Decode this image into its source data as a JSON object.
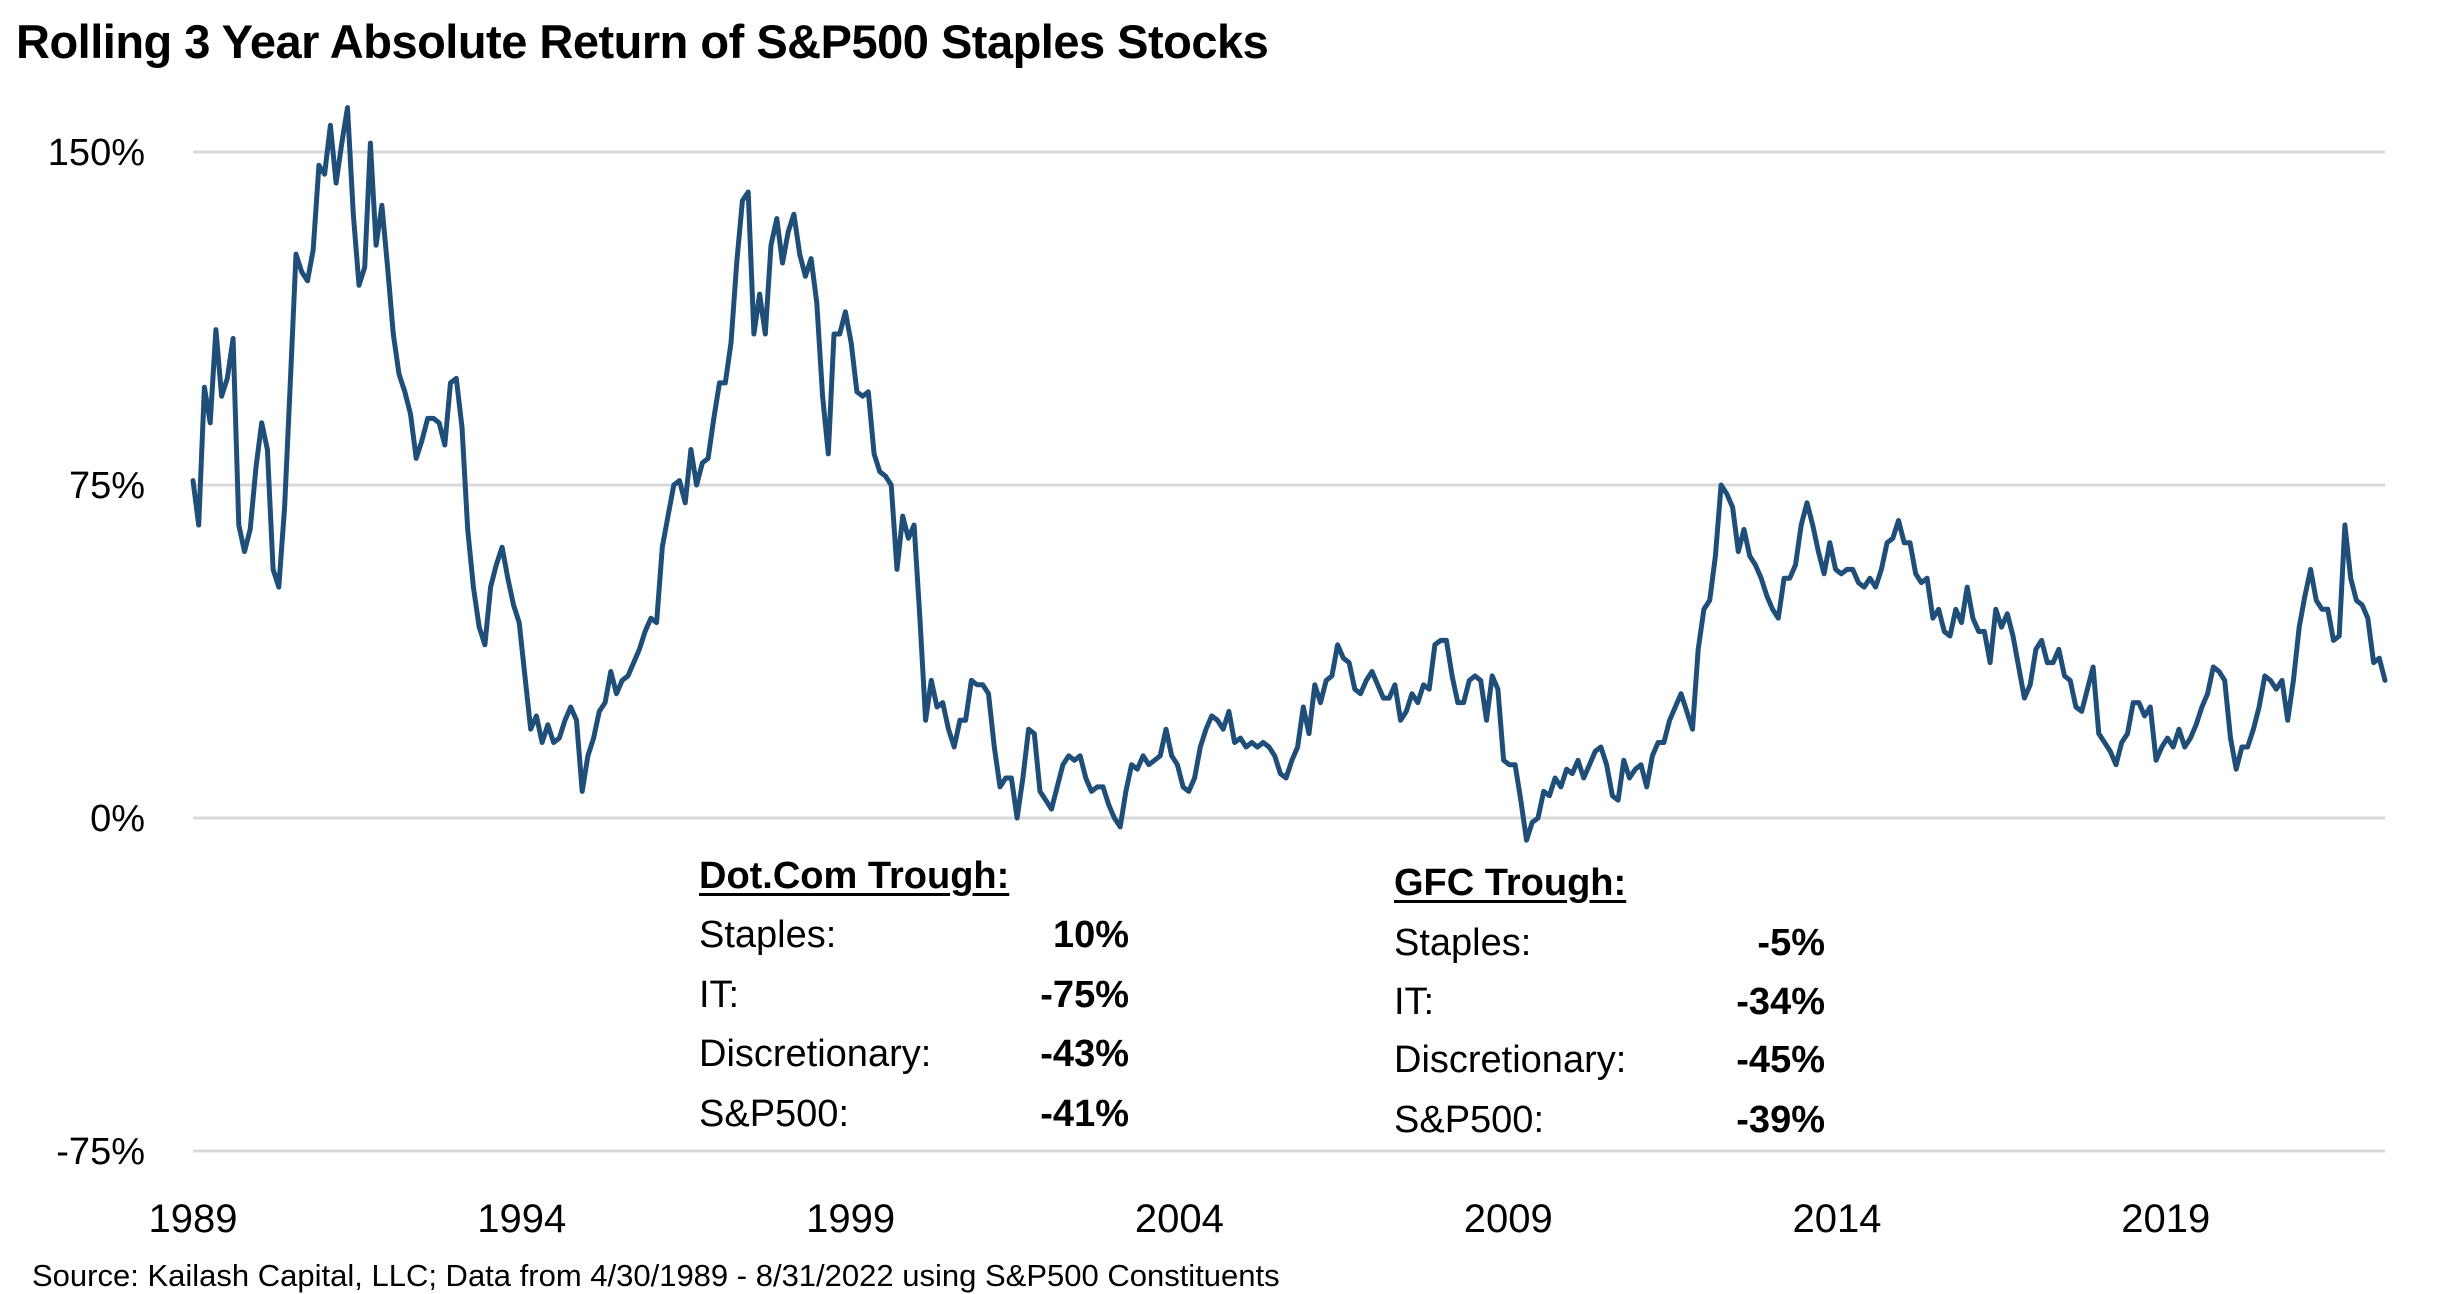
{
  "chart_data": {
    "type": "line",
    "title": "Rolling 3 Year Absolute Return of S&P500 Staples Stocks",
    "xlabel": "",
    "ylabel": "",
    "x_start": "1989-04",
    "x_end": "2022-08",
    "frequency": "monthly",
    "x_ticks": [
      "1989",
      "1994",
      "1999",
      "2004",
      "2009",
      "2014",
      "2019"
    ],
    "y_ticks": [
      150,
      75,
      0,
      -75
    ],
    "y_tick_labels": [
      "150%",
      "75%",
      "0%",
      "-75%"
    ],
    "ylim": [
      -75,
      160
    ],
    "grid": "horizontal",
    "line_color": "#1f4e79",
    "grid_color": "#d9d9d9",
    "values": [
      76,
      66,
      97,
      89,
      110,
      95,
      99,
      108,
      66,
      60,
      65,
      79,
      89,
      83,
      56,
      52,
      70,
      98,
      127,
      123,
      121,
      128,
      147,
      145,
      156,
      143,
      152,
      160,
      136,
      120,
      124,
      152,
      129,
      138,
      124,
      109,
      100,
      96,
      91,
      81,
      85,
      90,
      90,
      89,
      84,
      98,
      99,
      88,
      65,
      52,
      43,
      39,
      52,
      57,
      61,
      54,
      48,
      44,
      32,
      20,
      23,
      17,
      21,
      17,
      18,
      22,
      25,
      22,
      6,
      14,
      18,
      24,
      26,
      33,
      28,
      31,
      32,
      35,
      38,
      42,
      45,
      44,
      61,
      68,
      75,
      76,
      71,
      83,
      75,
      80,
      81,
      90,
      98,
      98,
      107,
      125,
      139,
      141,
      109,
      118,
      109,
      129,
      135,
      125,
      132,
      136,
      127,
      122,
      126,
      116,
      95,
      82,
      109,
      109,
      114,
      107,
      96,
      95,
      96,
      82,
      78,
      77,
      75,
      56,
      68,
      63,
      66,
      45,
      22,
      31,
      25,
      26,
      20,
      16,
      22,
      22,
      31,
      30,
      30,
      28,
      16,
      7,
      9,
      9,
      0,
      9,
      20,
      19,
      6,
      4,
      2,
      7,
      12,
      14,
      13,
      14,
      9,
      6,
      7,
      7,
      3,
      0,
      -2,
      6,
      12,
      11,
      14,
      12,
      13,
      14,
      20,
      14,
      12,
      7,
      6,
      9,
      16,
      20,
      23,
      22,
      20,
      24,
      17,
      18,
      16,
      17,
      16,
      17,
      16,
      14,
      10,
      9,
      13,
      16,
      25,
      19,
      30,
      26,
      31,
      32,
      39,
      36,
      35,
      29,
      28,
      31,
      33,
      30,
      27,
      27,
      30,
      22,
      24,
      28,
      26,
      30,
      29,
      39,
      40,
      40,
      32,
      26,
      26,
      31,
      32,
      31,
      22,
      32,
      29,
      13,
      12,
      12,
      4,
      -5,
      -1,
      0,
      6,
      5,
      9,
      7,
      11,
      10,
      13,
      9,
      12,
      15,
      16,
      12,
      5,
      4,
      13,
      9,
      11,
      12,
      7,
      14,
      17,
      17,
      22,
      25,
      28,
      24,
      20,
      38,
      47,
      49,
      59,
      75,
      73,
      70,
      60,
      65,
      59,
      57,
      54,
      50,
      47,
      45,
      54,
      54,
      57,
      66,
      71,
      66,
      60,
      55,
      62,
      56,
      55,
      56,
      56,
      53,
      52,
      54,
      52,
      56,
      62,
      63,
      67,
      62,
      62,
      55,
      53,
      54,
      45,
      47,
      42,
      41,
      47,
      44,
      52,
      45,
      42,
      42,
      35,
      47,
      43,
      46,
      41,
      34,
      27,
      30,
      38,
      40,
      35,
      35,
      38,
      32,
      31,
      25,
      24,
      29,
      34,
      19,
      17,
      15,
      12,
      17,
      19,
      26,
      26,
      23,
      25,
      13,
      16,
      18,
      16,
      20,
      16,
      18,
      21,
      25,
      28,
      34,
      33,
      31,
      18,
      11,
      16,
      16,
      20,
      25,
      32,
      31,
      29,
      31,
      22,
      31,
      43,
      50,
      56,
      49,
      47,
      47,
      40,
      41,
      66,
      54,
      49,
      48,
      45,
      35,
      36,
      31
    ],
    "annotations": [
      {
        "heading": "Dot.Com Trough:",
        "rows": [
          {
            "label": "Staples:",
            "value": "10%"
          },
          {
            "label": "IT:",
            "value": "-75%"
          },
          {
            "label": "Discretionary:",
            "value": "-43%"
          },
          {
            "label": "S&P500:",
            "value": "-41%"
          }
        ]
      },
      {
        "heading": "GFC Trough:",
        "rows": [
          {
            "label": "Staples:",
            "value": "-5%"
          },
          {
            "label": "IT:",
            "value": "-34%"
          },
          {
            "label": "Discretionary:",
            "value": "-45%"
          },
          {
            "label": "S&P500:",
            "value": "-39%"
          }
        ]
      }
    ],
    "source": "Source: Kailash Capital, LLC; Data from 4/30/1989 - 8/31/2022 using S&P500 Constituents"
  }
}
